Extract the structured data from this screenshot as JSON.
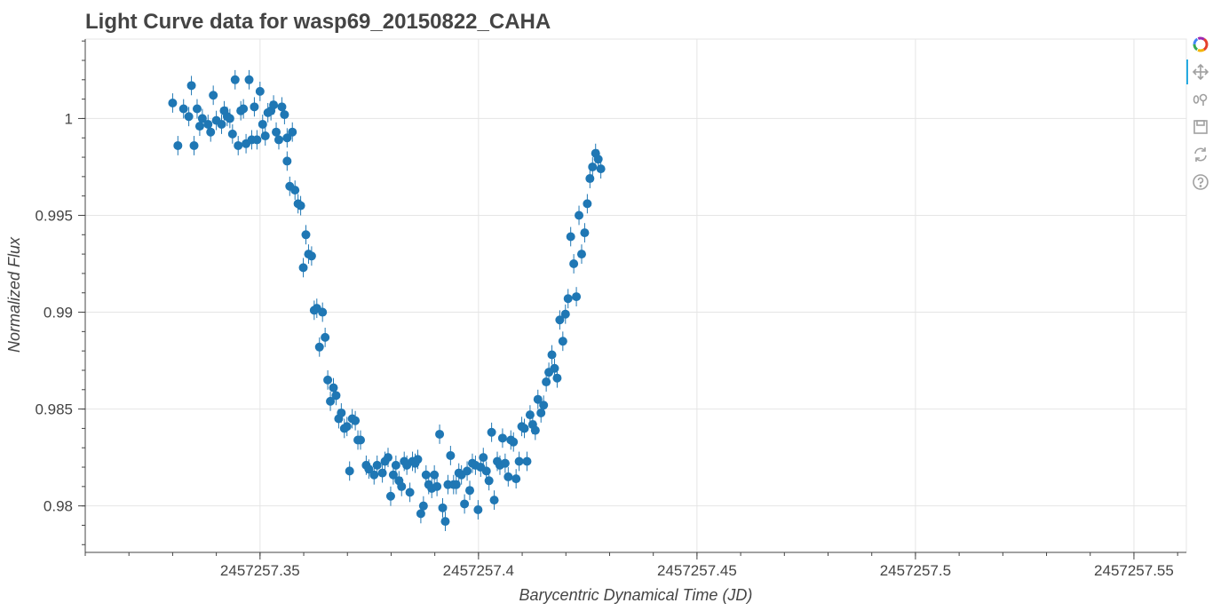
{
  "chart_data": {
    "type": "scatter",
    "title": "Light Curve data for wasp69_20150822_CAHA",
    "xlabel": "Barycentric Dynamical Time (JD)",
    "ylabel": "Normalized Flux",
    "xlim": [
      2457257.31,
      2457257.562
    ],
    "ylim": [
      0.9776,
      1.0041
    ],
    "x_ticks": [
      {
        "value": 2457257.35,
        "label": "2457257.35"
      },
      {
        "value": 2457257.4,
        "label": "2457257.4"
      },
      {
        "value": 2457257.45,
        "label": "2457257.45"
      },
      {
        "value": 2457257.5,
        "label": "2457257.5"
      },
      {
        "value": 2457257.55,
        "label": "2457257.55"
      }
    ],
    "y_ticks": [
      {
        "value": 0.98,
        "label": "0.98"
      },
      {
        "value": 0.985,
        "label": "0.985"
      },
      {
        "value": 0.99,
        "label": "0.99"
      },
      {
        "value": 0.995,
        "label": "0.995"
      },
      {
        "value": 1.0,
        "label": "1"
      }
    ],
    "grid": true,
    "marker_color": "#1f77b4",
    "y_error": 0.0005,
    "series": [
      {
        "points": [
          [
            2457257.33,
            1.0008
          ],
          [
            2457257.3312,
            0.9986
          ],
          [
            2457257.3325,
            1.0005
          ],
          [
            2457257.3337,
            1.0001
          ],
          [
            2457257.3343,
            1.0017
          ],
          [
            2457257.3349,
            0.9986
          ],
          [
            2457257.3356,
            1.0005
          ],
          [
            2457257.3362,
            0.9996
          ],
          [
            2457257.3368,
            1.0
          ],
          [
            2457257.3381,
            0.9997
          ],
          [
            2457257.3387,
            0.9993
          ],
          [
            2457257.3393,
            1.0012
          ],
          [
            2457257.34,
            0.9999
          ],
          [
            2457257.3412,
            0.9997
          ],
          [
            2457257.3418,
            1.0004
          ],
          [
            2457257.3425,
            1.0001
          ],
          [
            2457257.3431,
            1.0
          ],
          [
            2457257.3437,
            0.9992
          ],
          [
            2457257.3443,
            1.002
          ],
          [
            2457257.345,
            0.9986
          ],
          [
            2457257.3456,
            1.0004
          ],
          [
            2457257.3462,
            1.0005
          ],
          [
            2457257.3468,
            0.9987
          ],
          [
            2457257.3475,
            1.002
          ],
          [
            2457257.3481,
            0.9989
          ],
          [
            2457257.3487,
            1.0006
          ],
          [
            2457257.3493,
            0.9989
          ],
          [
            2457257.35,
            1.0014
          ],
          [
            2457257.3506,
            0.9997
          ],
          [
            2457257.3512,
            0.9991
          ],
          [
            2457257.3518,
            1.0003
          ],
          [
            2457257.3525,
            1.0004
          ],
          [
            2457257.3531,
            1.0007
          ],
          [
            2457257.3537,
            0.9993
          ],
          [
            2457257.3543,
            0.9989
          ],
          [
            2457257.355,
            1.0006
          ],
          [
            2457257.3556,
            1.0002
          ],
          [
            2457257.3562,
            0.999
          ],
          [
            2457257.3574,
            0.9993
          ],
          [
            2457257.3562,
            0.9978
          ],
          [
            2457257.3568,
            0.9965
          ],
          [
            2457257.358,
            0.9963
          ],
          [
            2457257.3587,
            0.9956
          ],
          [
            2457257.3593,
            0.9955
          ],
          [
            2457257.3599,
            0.9923
          ],
          [
            2457257.3605,
            0.994
          ],
          [
            2457257.3611,
            0.993
          ],
          [
            2457257.3618,
            0.9929
          ],
          [
            2457257.3624,
            0.9901
          ],
          [
            2457257.363,
            0.9902
          ],
          [
            2457257.3636,
            0.9882
          ],
          [
            2457257.3643,
            0.99
          ],
          [
            2457257.3649,
            0.9887
          ],
          [
            2457257.3655,
            0.9865
          ],
          [
            2457257.3661,
            0.9854
          ],
          [
            2457257.3668,
            0.9861
          ],
          [
            2457257.3674,
            0.9857
          ],
          [
            2457257.368,
            0.9845
          ],
          [
            2457257.3686,
            0.9848
          ],
          [
            2457257.3693,
            0.984
          ],
          [
            2457257.3699,
            0.9841
          ],
          [
            2457257.3711,
            0.9845
          ],
          [
            2457257.3718,
            0.9844
          ],
          [
            2457257.3724,
            0.9834
          ],
          [
            2457257.373,
            0.9834
          ],
          [
            2457257.3705,
            0.9818
          ],
          [
            2457257.3743,
            0.9821
          ],
          [
            2457257.3749,
            0.9819
          ],
          [
            2457257.3761,
            0.9816
          ],
          [
            2457257.3768,
            0.9821
          ],
          [
            2457257.378,
            0.9817
          ],
          [
            2457257.3786,
            0.9823
          ],
          [
            2457257.3793,
            0.9825
          ],
          [
            2457257.3799,
            0.9805
          ],
          [
            2457257.3805,
            0.9816
          ],
          [
            2457257.3811,
            0.9821
          ],
          [
            2457257.3818,
            0.9813
          ],
          [
            2457257.3824,
            0.981
          ],
          [
            2457257.383,
            0.9823
          ],
          [
            2457257.3836,
            0.9821
          ],
          [
            2457257.3843,
            0.9807
          ],
          [
            2457257.3849,
            0.9823
          ],
          [
            2457257.3855,
            0.9822
          ],
          [
            2457257.3861,
            0.9824
          ],
          [
            2457257.3868,
            0.9796
          ],
          [
            2457257.3874,
            0.98
          ],
          [
            2457257.388,
            0.9816
          ],
          [
            2457257.3886,
            0.9811
          ],
          [
            2457257.3893,
            0.9809
          ],
          [
            2457257.3899,
            0.9816
          ],
          [
            2457257.3905,
            0.981
          ],
          [
            2457257.3911,
            0.9837
          ],
          [
            2457257.3918,
            0.9799
          ],
          [
            2457257.3924,
            0.9792
          ],
          [
            2457257.393,
            0.9811
          ],
          [
            2457257.3936,
            0.9826
          ],
          [
            2457257.3943,
            0.9811
          ],
          [
            2457257.3949,
            0.9811
          ],
          [
            2457257.3955,
            0.9817
          ],
          [
            2457257.3961,
            0.9816
          ],
          [
            2457257.3968,
            0.9801
          ],
          [
            2457257.3974,
            0.9818
          ],
          [
            2457257.398,
            0.9808
          ],
          [
            2457257.3986,
            0.9822
          ],
          [
            2457257.3993,
            0.9821
          ],
          [
            2457257.3999,
            0.9798
          ],
          [
            2457257.4005,
            0.982
          ],
          [
            2457257.4011,
            0.9825
          ],
          [
            2457257.4018,
            0.9818
          ],
          [
            2457257.4024,
            0.9813
          ],
          [
            2457257.403,
            0.9838
          ],
          [
            2457257.4036,
            0.9803
          ],
          [
            2457257.4043,
            0.9823
          ],
          [
            2457257.4049,
            0.9821
          ],
          [
            2457257.4055,
            0.9835
          ],
          [
            2457257.4061,
            0.9822
          ],
          [
            2457257.4068,
            0.9815
          ],
          [
            2457257.4074,
            0.9834
          ],
          [
            2457257.408,
            0.9833
          ],
          [
            2457257.4086,
            0.9814
          ],
          [
            2457257.4093,
            0.9823
          ],
          [
            2457257.4099,
            0.9841
          ],
          [
            2457257.4105,
            0.984
          ],
          [
            2457257.4111,
            0.9823
          ],
          [
            2457257.4118,
            0.9847
          ],
          [
            2457257.4124,
            0.9842
          ],
          [
            2457257.413,
            0.9839
          ],
          [
            2457257.4136,
            0.9855
          ],
          [
            2457257.4143,
            0.9848
          ],
          [
            2457257.4149,
            0.9852
          ],
          [
            2457257.4155,
            0.9864
          ],
          [
            2457257.4161,
            0.9869
          ],
          [
            2457257.4168,
            0.9878
          ],
          [
            2457257.4174,
            0.9871
          ],
          [
            2457257.418,
            0.9866
          ],
          [
            2457257.4186,
            0.9896
          ],
          [
            2457257.4193,
            0.9885
          ],
          [
            2457257.4199,
            0.9899
          ],
          [
            2457257.4205,
            0.9907
          ],
          [
            2457257.4211,
            0.9939
          ],
          [
            2457257.4218,
            0.9925
          ],
          [
            2457257.4224,
            0.9908
          ],
          [
            2457257.423,
            0.995
          ],
          [
            2457257.4236,
            0.993
          ],
          [
            2457257.4243,
            0.9941
          ],
          [
            2457257.4249,
            0.9956
          ],
          [
            2457257.4255,
            0.9969
          ],
          [
            2457257.4261,
            0.9975
          ],
          [
            2457257.4268,
            0.9982
          ],
          [
            2457257.4274,
            0.9979
          ],
          [
            2457257.428,
            0.9974
          ]
        ]
      }
    ]
  },
  "toolbar": {
    "tools": [
      "bokeh-logo-icon",
      "pan-icon",
      "wheel-zoom-icon",
      "save-icon",
      "reset-icon",
      "help-icon"
    ]
  }
}
